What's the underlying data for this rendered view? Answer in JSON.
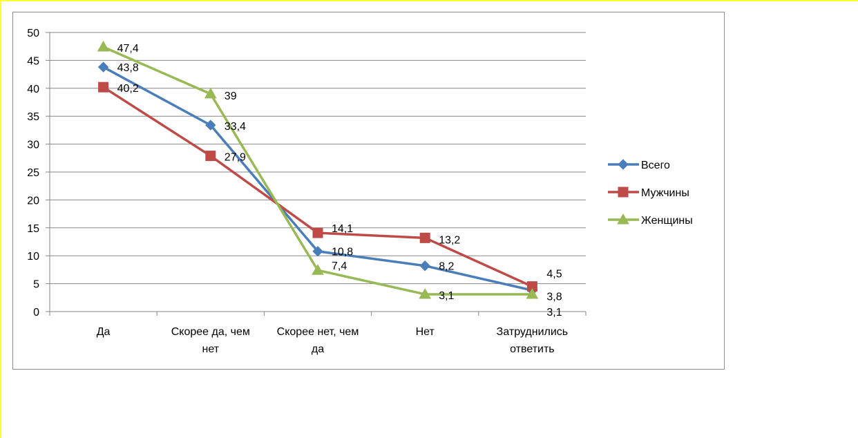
{
  "chart_data": {
    "type": "line",
    "title": "",
    "xlabel": "",
    "ylabel": "",
    "categories": [
      [
        "Да"
      ],
      [
        "Скорее да, чем",
        "нет"
      ],
      [
        "Скорее нет, чем",
        "да"
      ],
      [
        "Нет"
      ],
      [
        "Затруднились",
        "ответить"
      ]
    ],
    "ylim": [
      0,
      50
    ],
    "yticks": [
      0,
      5,
      10,
      15,
      20,
      25,
      30,
      35,
      40,
      45,
      50
    ],
    "grid": true,
    "legend_position": "right",
    "series": [
      {
        "name": "Всего",
        "color": "#4a7ebb",
        "marker": "diamond",
        "values": [
          43.8,
          33.4,
          10.8,
          8.2,
          3.8
        ],
        "labels": [
          "43,8",
          "33,4",
          "10,8",
          "8,2",
          "3,8"
        ]
      },
      {
        "name": "Мужчины",
        "color": "#be4b48",
        "marker": "square",
        "values": [
          40.2,
          27.9,
          14.1,
          13.2,
          4.5
        ],
        "labels": [
          "40,2",
          "27,9",
          "14,1",
          "13,2",
          "4,5"
        ]
      },
      {
        "name": "Женщины",
        "color": "#98b954",
        "marker": "triangle",
        "values": [
          47.4,
          39,
          7.4,
          3.1,
          3.1
        ],
        "labels": [
          "47,4",
          "39",
          "7,4",
          "3,1",
          "3,1"
        ]
      }
    ]
  }
}
